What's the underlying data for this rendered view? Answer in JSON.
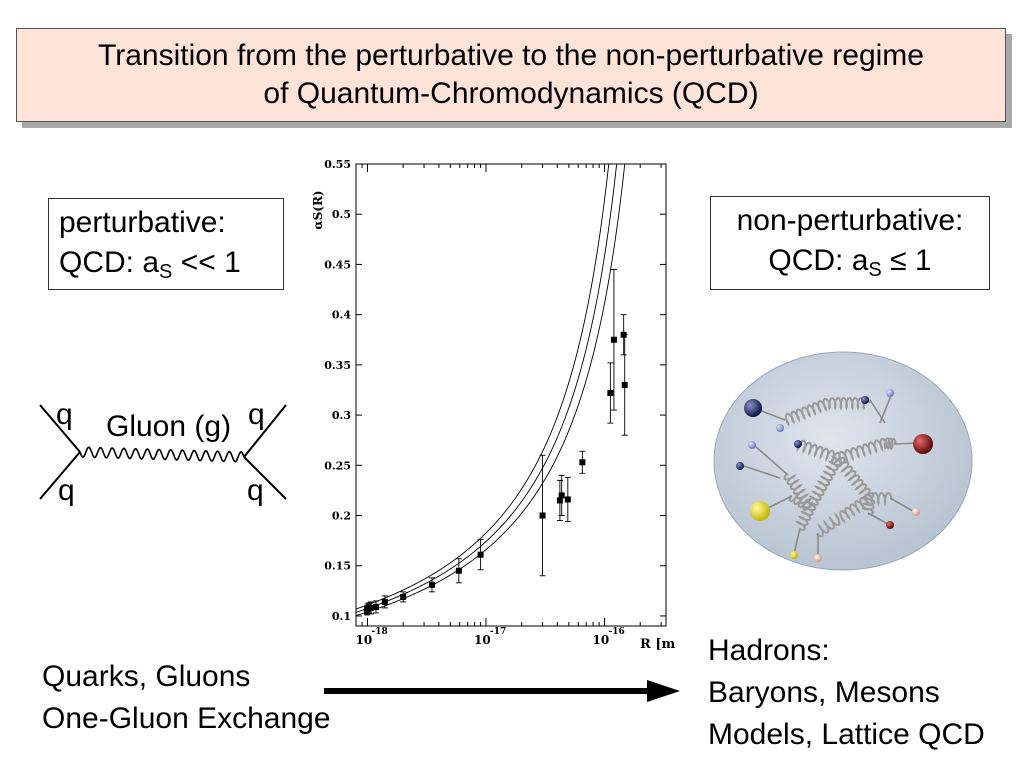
{
  "title": {
    "line1": "Transition from the perturbative to the non-perturbative regime",
    "line2": "of Quantum-Chromodynamics (QCD)"
  },
  "perturbative": {
    "heading": "perturbative:",
    "qcd": "QCD: a",
    "sub": "S",
    "relation": " << 1"
  },
  "non_perturbative": {
    "heading": "non-perturbative:",
    "qcd": "QCD: a",
    "sub": "S",
    "relation": " ≤ 1"
  },
  "feynman": {
    "q_top_left": "q",
    "q_top_right": "q",
    "q_bottom_left": "q",
    "q_bottom_right": "q",
    "gluon": "Gluon (g)"
  },
  "bottom_left": {
    "line1": "Quarks, Gluons",
    "line2": "One-Gluon Exchange"
  },
  "bottom_right": {
    "line1": "Hadrons:",
    "line2": "Baryons, Mesons",
    "line3": "Models, Lattice QCD"
  },
  "chart_data": {
    "type": "scatter",
    "ylabel": "αS(R)",
    "xlabel": "R [m]",
    "x_scale": "log",
    "xlim": [
      8e-19,
      3.3e-16
    ],
    "ylim": [
      0.09,
      0.55
    ],
    "yticks": [
      0.1,
      0.15,
      0.2,
      0.25,
      0.3,
      0.35,
      0.4,
      0.45,
      0.5,
      0.55
    ],
    "xticks": [
      {
        "value": 1e-18,
        "base": "10",
        "exp": "-18"
      },
      {
        "value": 1e-17,
        "base": "10",
        "exp": "-17"
      },
      {
        "value": 1e-16,
        "base": "10",
        "exp": "-16"
      }
    ],
    "points": [
      {
        "x": 9.9e-19,
        "y": 0.105,
        "err": 0.004
      },
      {
        "x": 1e-18,
        "y": 0.107,
        "err": 0.005
      },
      {
        "x": 1.03e-18,
        "y": 0.108,
        "err": 0.005
      },
      {
        "x": 1.07e-18,
        "y": 0.108,
        "err": 0.006
      },
      {
        "x": 1.18e-18,
        "y": 0.109,
        "err": 0.006
      },
      {
        "x": 1.4e-18,
        "y": 0.114,
        "err": 0.006
      },
      {
        "x": 2e-18,
        "y": 0.119,
        "err": 0.005
      },
      {
        "x": 3.5e-18,
        "y": 0.131,
        "err": 0.007
      },
      {
        "x": 5.9e-18,
        "y": 0.145,
        "err": 0.012
      },
      {
        "x": 9e-18,
        "y": 0.161,
        "err": 0.015
      },
      {
        "x": 3e-17,
        "y": 0.2,
        "err": 0.06
      },
      {
        "x": 4.2e-17,
        "y": 0.215,
        "err": 0.02
      },
      {
        "x": 4.35e-17,
        "y": 0.22,
        "err": 0.02
      },
      {
        "x": 4.9e-17,
        "y": 0.216,
        "err": 0.022
      },
      {
        "x": 6.5e-17,
        "y": 0.253,
        "err": 0.011
      },
      {
        "x": 1.12e-16,
        "y": 0.322,
        "err": 0.03
      },
      {
        "x": 1.2e-16,
        "y": 0.375,
        "err": 0.07
      },
      {
        "x": 1.45e-16,
        "y": 0.38,
        "err": 0.02
      },
      {
        "x": 1.48e-16,
        "y": 0.33,
        "err": 0.05
      }
    ],
    "curves": [
      {
        "y_at_1e-18": 0.104,
        "R0": 4.75e-16
      },
      {
        "y_at_1e-18": 0.1075,
        "R0": 4.1e-16
      },
      {
        "y_at_1e-18": 0.111,
        "R0": 3.55e-16
      }
    ]
  },
  "colors": {
    "title_bg": "#fde3d8",
    "hadron_bg": "#c9d3df",
    "gluon_spring": "#9a9a9a"
  }
}
